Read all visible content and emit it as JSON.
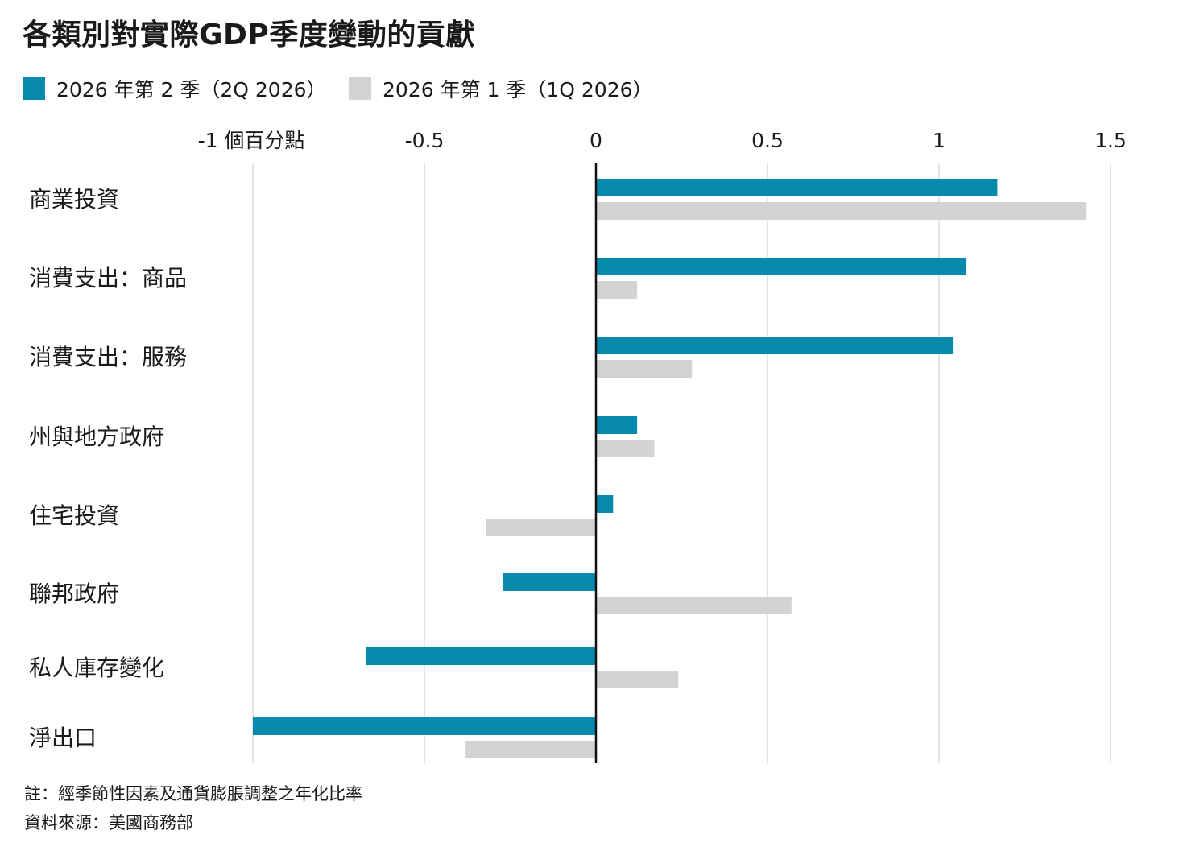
{
  "title": "各類別對實際GDP季度變動的貢獻",
  "note": "註：經季節性因素及通貨膨脹調整之年化比率",
  "source": "資料來源：美國商務部",
  "colors": {
    "q2": "#0589ad",
    "q1": "#d3d3d3",
    "axis": "#111111",
    "grid": "#dcdcdc"
  },
  "chart_data": {
    "type": "bar",
    "orientation": "horizontal",
    "categories": [
      "商業投資",
      "消費支出：商品",
      "消費支出：服務",
      "州與地方政府",
      "住宅投資",
      "聯邦政府",
      "私人庫存變化",
      "淨出口"
    ],
    "series": [
      {
        "name": "2026 年第 2 季（2Q 2026）",
        "values": [
          1.17,
          1.08,
          1.04,
          0.12,
          0.05,
          -0.27,
          -0.67,
          -1.0
        ]
      },
      {
        "name": "2026 年第 1 季（1Q 2026）",
        "values": [
          1.43,
          0.12,
          0.28,
          0.17,
          -0.32,
          0.57,
          0.24,
          -0.38
        ]
      }
    ],
    "xlim": [
      -1,
      1.5
    ],
    "xticks": [
      -1,
      -0.5,
      0,
      0.5,
      1,
      1.5
    ],
    "xtick_labels": [
      "-1 個百分點",
      "-0.5",
      "0",
      "0.5",
      "1",
      "1.5"
    ],
    "grid": true,
    "legend_position": "top-left"
  }
}
